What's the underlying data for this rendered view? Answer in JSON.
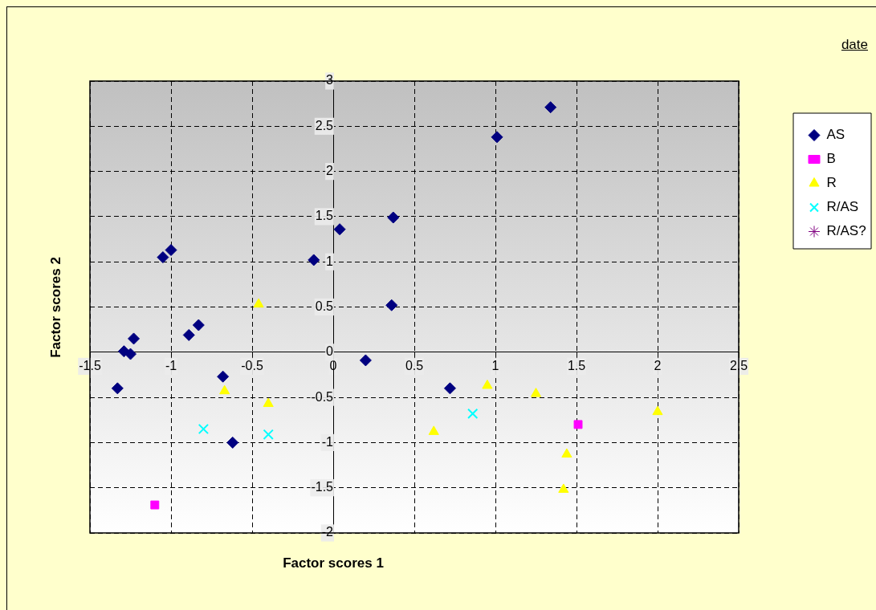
{
  "chart_data": {
    "type": "scatter",
    "xlabel": "Factor scores 1",
    "ylabel": "Factor scores 2",
    "annotations": [
      "date"
    ],
    "xlim": [
      -1.5,
      2.5
    ],
    "xticks": [
      -1.5,
      -1,
      -0.5,
      0,
      0.5,
      1,
      1.5,
      2,
      2.5
    ],
    "ylim": [
      -2,
      3
    ],
    "yticks": [
      -2,
      -1.5,
      -1,
      -0.5,
      0,
      0.5,
      1,
      1.5,
      2,
      2.5,
      3
    ],
    "grid": true,
    "legend": "right",
    "series": [
      {
        "name": "AS",
        "color": "#000080",
        "marker": "diamond",
        "x": [
          -1.33,
          -1.29,
          -1.25,
          -1.23,
          -1.05,
          -1.0,
          -0.89,
          -0.83,
          -0.68,
          -0.62,
          -0.12,
          0.04,
          0.37,
          0.36,
          0.2,
          0.72,
          1.01,
          1.34
        ],
        "values": [
          -0.4,
          0.01,
          -0.02,
          0.15,
          1.05,
          1.13,
          0.19,
          0.3,
          -0.27,
          -1.0,
          1.02,
          1.36,
          1.49,
          0.52,
          -0.09,
          -0.4,
          2.38,
          2.71
        ]
      },
      {
        "name": "B",
        "color": "#ff00ff",
        "marker": "square",
        "x": [
          -1.1,
          1.51
        ],
        "values": [
          -1.69,
          -0.8
        ]
      },
      {
        "name": "R",
        "color": "#ffff00",
        "marker": "triangle",
        "x": [
          -0.46,
          -0.67,
          -0.4,
          0.62,
          0.95,
          1.25,
          1.44,
          1.42,
          2.0
        ],
        "values": [
          0.53,
          -0.43,
          -0.57,
          -0.88,
          -0.37,
          -0.46,
          -1.13,
          -1.52,
          -0.66
        ]
      },
      {
        "name": "R/AS",
        "color": "#00ffff",
        "marker": "cross",
        "x": [
          -0.8,
          -0.4,
          0.86
        ],
        "values": [
          -0.85,
          -0.91,
          -0.68
        ]
      },
      {
        "name": "R/AS?",
        "color": "#800080",
        "marker": "star"
      }
    ]
  }
}
